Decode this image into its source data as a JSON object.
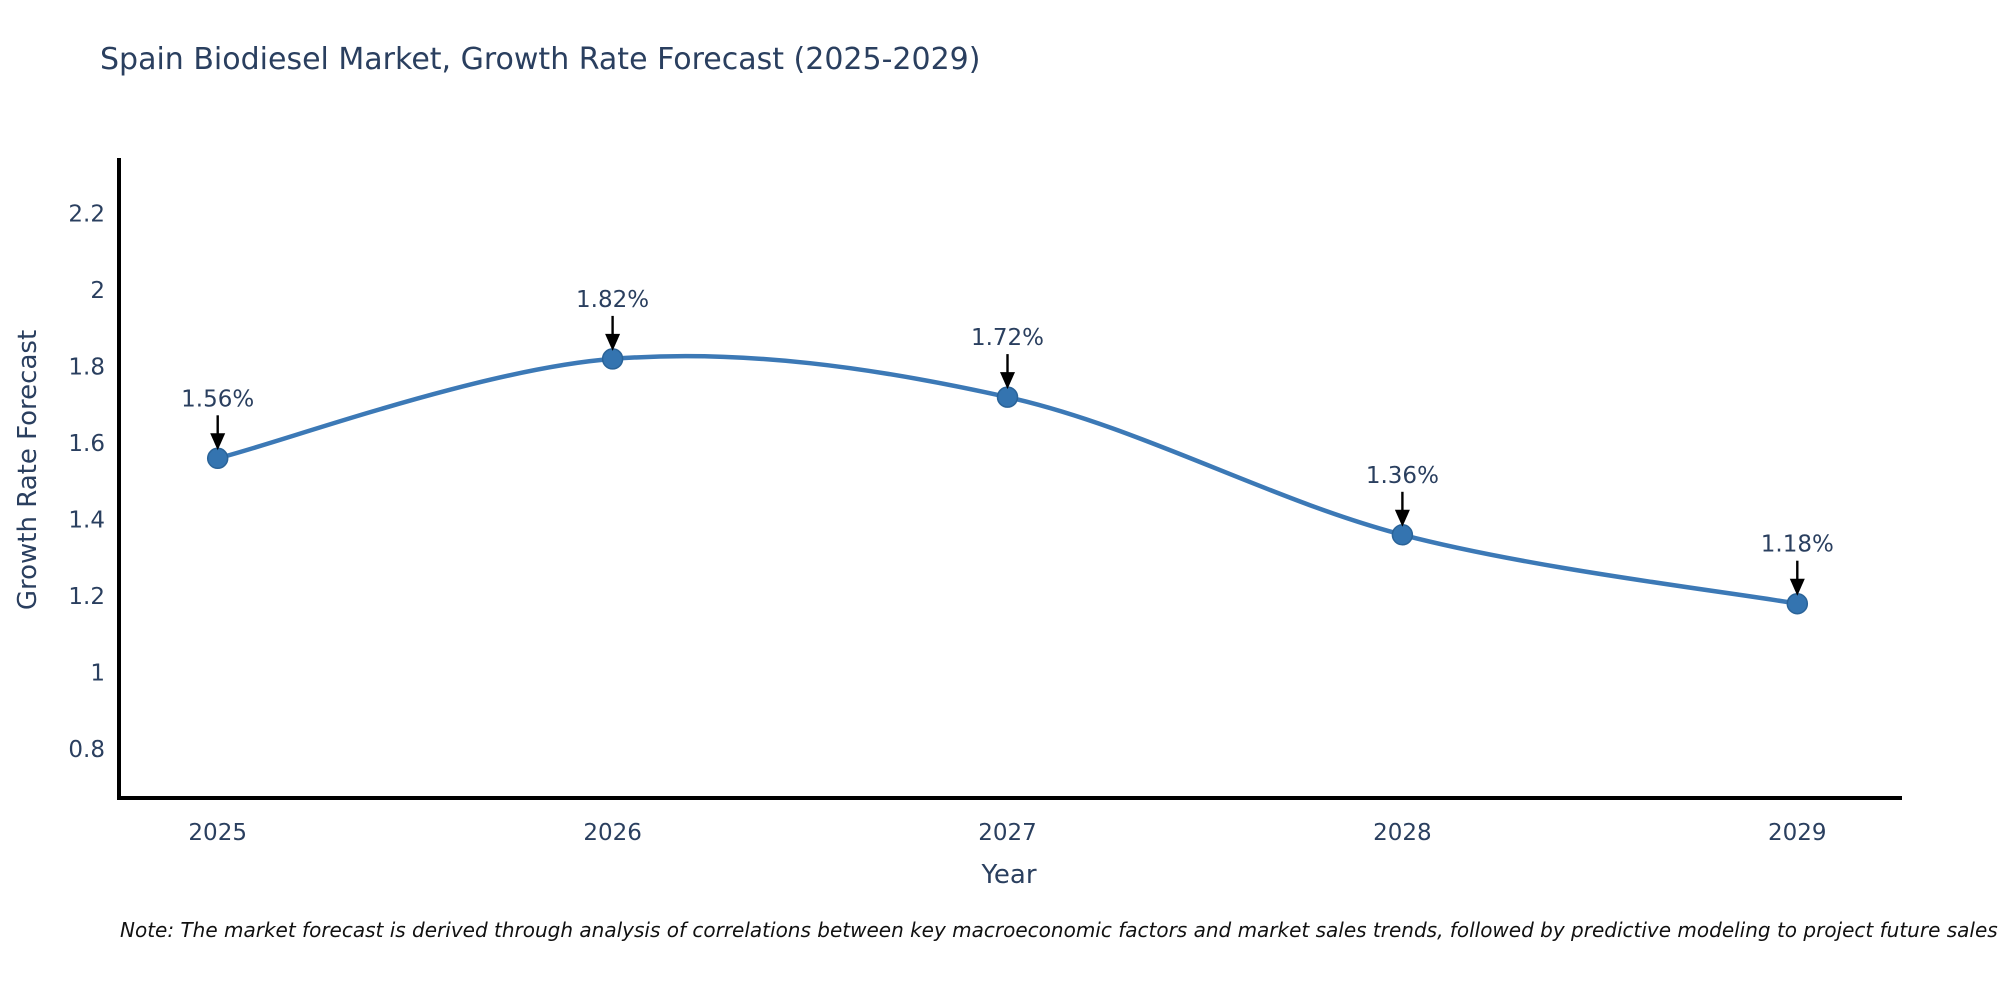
{
  "chart_data": {
    "type": "line",
    "title": "Spain Biodiesel Market, Growth Rate Forecast (2025-2029)",
    "xlabel": "Year",
    "ylabel": "Growth Rate Forecast",
    "x": [
      2025,
      2026,
      2027,
      2028,
      2029
    ],
    "values": [
      1.56,
      1.82,
      1.72,
      1.36,
      1.18
    ],
    "point_labels": [
      "1.56%",
      "1.82%",
      "1.72%",
      "1.36%",
      "1.18%"
    ],
    "line_shape": "spline",
    "markers": true,
    "grid": false,
    "legend": "none",
    "xlim": [
      2024.75,
      2029.26
    ],
    "ylim": [
      0.672,
      2.34
    ],
    "xticks": [
      2025,
      2026,
      2027,
      2028,
      2029
    ],
    "yticks": [
      0.8,
      1,
      1.2,
      1.4,
      1.6,
      1.8,
      2,
      2.2
    ],
    "footnote": "Note: The market forecast is derived through analysis of correlations between key macroeconomic factors and market sales trends, followed by predictive modeling to project future sales",
    "colors": {
      "line": "#3c79b6",
      "marker_fill": "#3474b0",
      "marker_edge": "#2a6398",
      "axis_line": "#000000",
      "chart_text": "#2a3f5f",
      "annotation_arrow": "#000000",
      "footnote_text": "#111111",
      "background": "#ffffff"
    }
  }
}
